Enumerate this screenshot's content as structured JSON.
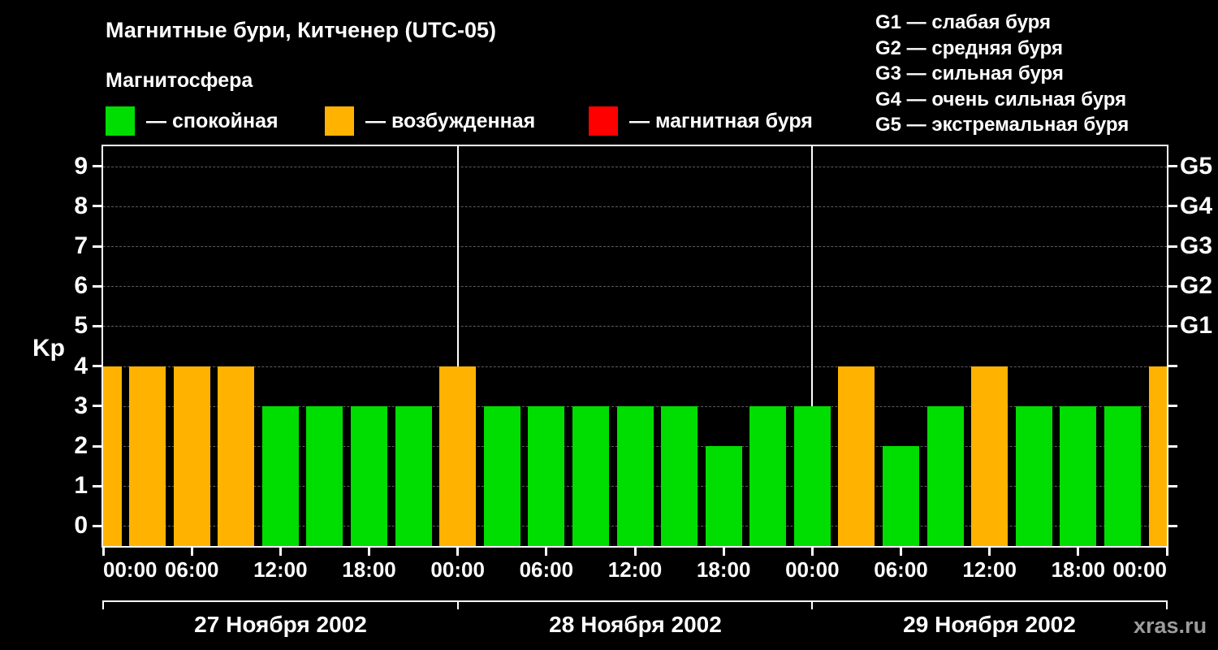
{
  "watermark": "xras.ru",
  "chart_data": {
    "type": "bar",
    "title": "Магнитные бури, Китченер (UTC-05)",
    "subtitle": "Магнитосфера",
    "ylabel": "Kp",
    "ylim": [
      -0.5,
      9.5
    ],
    "yticks": [
      0,
      1,
      2,
      3,
      4,
      5,
      6,
      7,
      8,
      9
    ],
    "grid": true,
    "legend_position": "top",
    "legend": [
      {
        "label": "— спокойная",
        "state": "quiet"
      },
      {
        "label": "— возбужденная",
        "state": "excited"
      },
      {
        "label": "— магнитная буря",
        "state": "storm"
      }
    ],
    "g_legend": [
      "G1 — слабая буря",
      "G2 — средняя буря",
      "G3 — сильная буря",
      "G4 — очень сильная буря",
      "G5 — экстремальная буря"
    ],
    "right_axis": [
      {
        "label": "G1",
        "kp": 5
      },
      {
        "label": "G2",
        "kp": 6
      },
      {
        "label": "G3",
        "kp": 7
      },
      {
        "label": "G4",
        "kp": 8
      },
      {
        "label": "G5",
        "kp": 9
      }
    ],
    "x_tick_labels": [
      "00:00",
      "06:00",
      "12:00",
      "18:00",
      "00:00",
      "06:00",
      "12:00",
      "18:00",
      "00:00",
      "06:00",
      "12:00",
      "18:00",
      "00:00"
    ],
    "days": [
      {
        "date": "27 Ноября 2002"
      },
      {
        "date": "28 Ноября 2002"
      },
      {
        "date": "29 Ноября 2002"
      }
    ],
    "interval_hours": 3,
    "colors": {
      "quiet": "#00dd00",
      "excited": "#ffb300",
      "storm": "#ff0000"
    },
    "color_rules": {
      "quiet_max_kp": 3,
      "excited_kp": 4,
      "storm_min_kp": 5
    },
    "points": [
      {
        "day": "27.11",
        "time": "00:00",
        "kp": 4
      },
      {
        "day": "27.11",
        "time": "03:00",
        "kp": 4
      },
      {
        "day": "27.11",
        "time": "06:00",
        "kp": 4
      },
      {
        "day": "27.11",
        "time": "09:00",
        "kp": 4
      },
      {
        "day": "27.11",
        "time": "12:00",
        "kp": 3
      },
      {
        "day": "27.11",
        "time": "15:00",
        "kp": 3
      },
      {
        "day": "27.11",
        "time": "18:00",
        "kp": 3
      },
      {
        "day": "27.11",
        "time": "21:00",
        "kp": 3
      },
      {
        "day": "28.11",
        "time": "00:00",
        "kp": 4
      },
      {
        "day": "28.11",
        "time": "03:00",
        "kp": 3
      },
      {
        "day": "28.11",
        "time": "06:00",
        "kp": 3
      },
      {
        "day": "28.11",
        "time": "09:00",
        "kp": 3
      },
      {
        "day": "28.11",
        "time": "12:00",
        "kp": 3
      },
      {
        "day": "28.11",
        "time": "15:00",
        "kp": 3
      },
      {
        "day": "28.11",
        "time": "18:00",
        "kp": 2
      },
      {
        "day": "28.11",
        "time": "21:00",
        "kp": 3
      },
      {
        "day": "29.11",
        "time": "00:00",
        "kp": 3
      },
      {
        "day": "29.11",
        "time": "03:00",
        "kp": 4
      },
      {
        "day": "29.11",
        "time": "06:00",
        "kp": 2
      },
      {
        "day": "29.11",
        "time": "09:00",
        "kp": 3
      },
      {
        "day": "29.11",
        "time": "12:00",
        "kp": 4
      },
      {
        "day": "29.11",
        "time": "15:00",
        "kp": 3
      },
      {
        "day": "29.11",
        "time": "18:00",
        "kp": 3
      },
      {
        "day": "29.11",
        "time": "21:00",
        "kp": 3
      },
      {
        "day": "30.11",
        "time": "00:00",
        "kp": 4
      }
    ]
  }
}
